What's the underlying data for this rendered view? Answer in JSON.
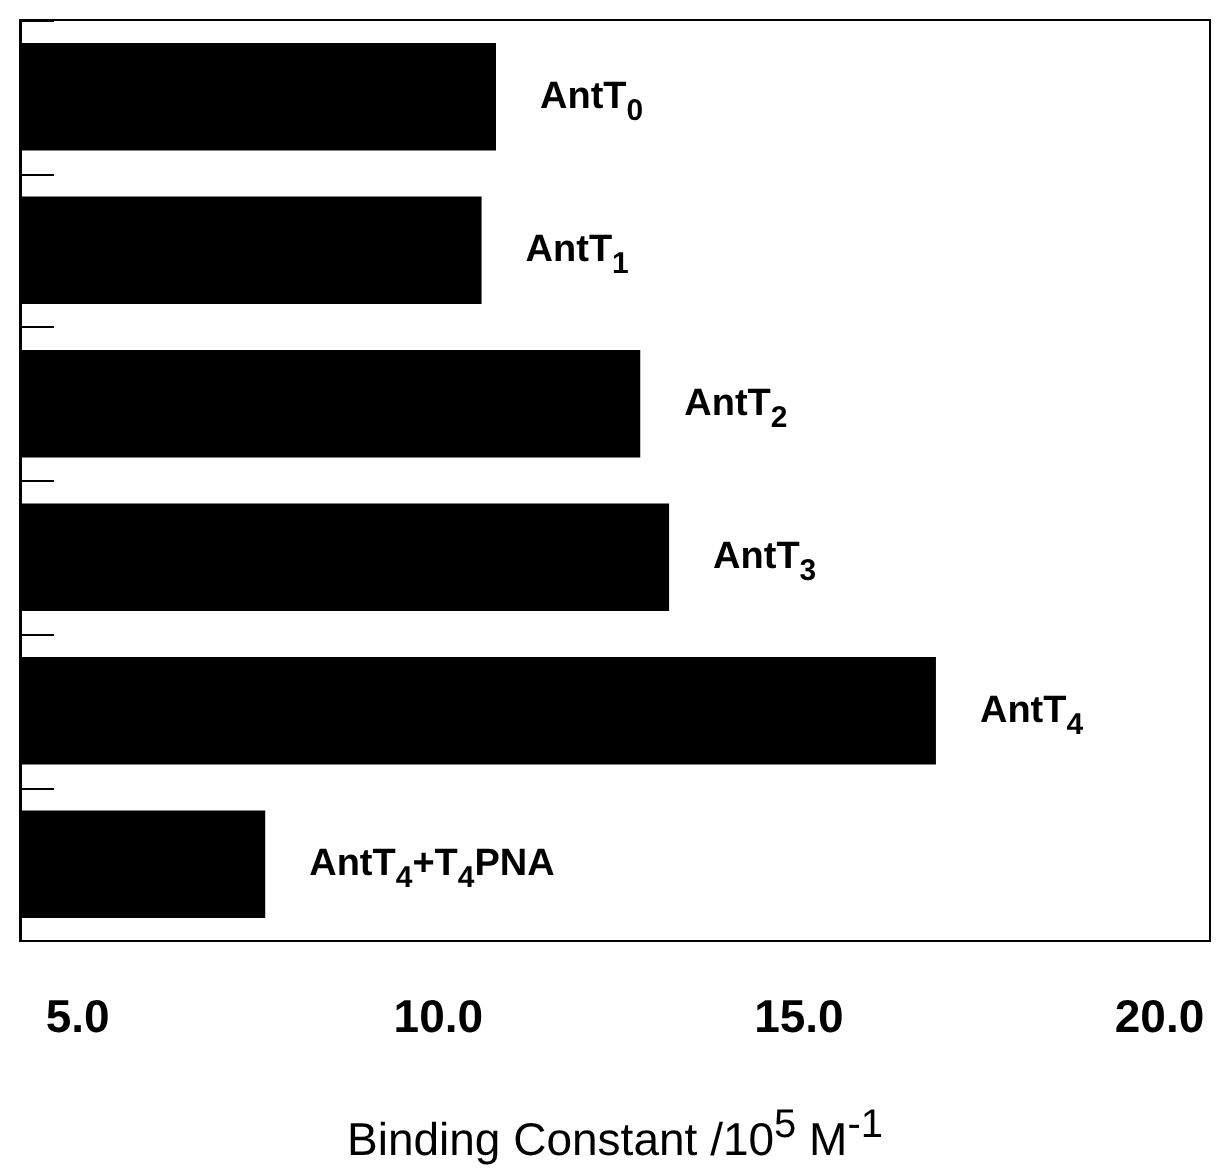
{
  "chart_data": {
    "type": "bar",
    "orientation": "horizontal",
    "xlabel": "Binding Constant /10$^{5}$ M$^{-1}$",
    "categories": [
      "AntT$_{0}$",
      "AntT$_{1}$",
      "AntT$_{2}$",
      "AntT$_{3}$",
      "AntT$_{4}$",
      "AntT$_{4}$+T$_{4}$PNA"
    ],
    "values": [
      10.8,
      10.6,
      12.8,
      13.2,
      16.9,
      7.6
    ],
    "color": "#000000",
    "xlim": [
      4.2,
      20.7
    ],
    "xticks": [
      {
        "value": 5,
        "label": "5.0"
      },
      {
        "value": 10,
        "label": "10.0"
      },
      {
        "value": 15,
        "label": "15.0"
      },
      {
        "value": 20,
        "label": "20.0"
      }
    ],
    "tick_labels": "x",
    "grid": false
  }
}
